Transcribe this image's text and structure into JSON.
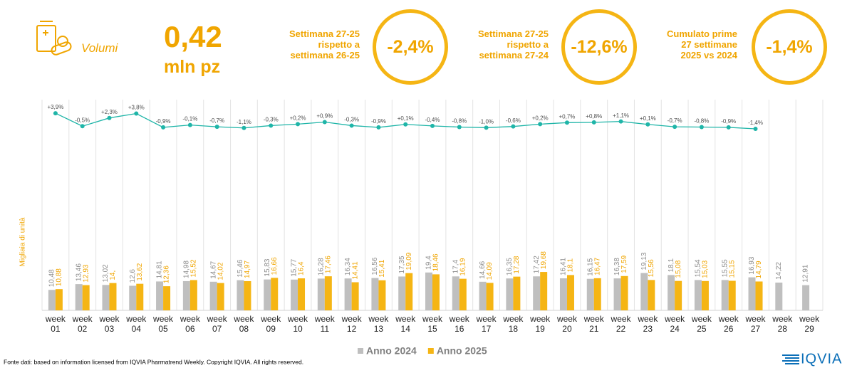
{
  "header": {
    "icon_label": "Volumi",
    "value": "0,42",
    "unit": "mln pz"
  },
  "kpis": [
    {
      "label_lines": [
        "Settimana 27-25",
        "rispetto a",
        "settimana 26-25"
      ],
      "value": "-2,4%"
    },
    {
      "label_lines": [
        "Settimana 27-25",
        "rispetto a",
        "settimana 27-24"
      ],
      "value": "-12,6%"
    },
    {
      "label_lines": [
        "Cumulato prime",
        "27 settimane",
        "2025 vs 2024"
      ],
      "value": "-1,4%"
    }
  ],
  "chart_data": {
    "type": "bar",
    "y_axis_label": "Migliaia di unità",
    "categories": [
      "week 01",
      "week 02",
      "week 03",
      "week 04",
      "week 05",
      "week 06",
      "week 07",
      "week 08",
      "week 09",
      "week 10",
      "week 11",
      "week 12",
      "week 13",
      "week 14",
      "week 15",
      "week 16",
      "week 17",
      "week 18",
      "week 19",
      "week 20",
      "week 21",
      "week 22",
      "week 23",
      "week 24",
      "week 25",
      "week 26",
      "week 27",
      "week 28",
      "week 29"
    ],
    "ylim": [
      0,
      108
    ],
    "y2lim": [
      -6,
      9
    ],
    "grid": "x",
    "series": [
      {
        "name": "Anno 2024",
        "color": "#bfbfbf",
        "values": [
          10.48,
          13.46,
          13.02,
          12.6,
          14.81,
          14.98,
          14.67,
          15.46,
          15.83,
          15.77,
          16.28,
          16.34,
          16.56,
          17.35,
          19.4,
          17.4,
          14.66,
          16.35,
          17.42,
          16.41,
          16.15,
          16.38,
          19.13,
          18.1,
          15.54,
          15.55,
          16.93,
          14.22,
          12.91
        ],
        "value_labels": [
          "10,48",
          "13,46",
          "13,02",
          "12,6",
          "14,81",
          "14,98",
          "14,67",
          "15,46",
          "15,83",
          "15,77",
          "16,28",
          "16,34",
          "16,56",
          "17,35",
          "19,4",
          "17,4",
          "14,66",
          "16,35",
          "17,42",
          "16,41",
          "16,15",
          "16,38",
          "19,13",
          "18,1",
          "15,54",
          "15,55",
          "16,93",
          "14,22",
          "12,91"
        ]
      },
      {
        "name": "Anno 2025",
        "color": "#f5b514",
        "values": [
          10.88,
          12.93,
          14,
          13.62,
          12.36,
          15.52,
          14.02,
          14.97,
          16.66,
          16.4,
          17.46,
          14.41,
          15.41,
          19.09,
          18.46,
          16.19,
          14.09,
          17.28,
          19.68,
          18.1,
          16.47,
          17.59,
          15.56,
          15.08,
          15.03,
          15.15,
          14.79,
          null,
          null
        ],
        "value_labels": [
          "10,88",
          "12,93",
          "14,",
          "13,62",
          "12,36",
          "15,52",
          "14,02",
          "14,97",
          "16,66",
          "16,4",
          "17,46",
          "14,41",
          "15,41",
          "19,09",
          "18,46",
          "16,19",
          "14,09",
          "17,28",
          "19,68",
          "18,1",
          "16,47",
          "17,59",
          "15,56",
          "15,08",
          "15,03",
          "15,15",
          "14,79",
          null,
          null
        ]
      }
    ],
    "growth": {
      "axis": "y2",
      "color": "#1fb5a8",
      "values": [
        3.9,
        -0.5,
        2.3,
        3.8,
        -0.9,
        -0.1,
        -0.7,
        -1.1,
        -0.3,
        0.2,
        0.9,
        -0.3,
        -0.9,
        0.1,
        -0.4,
        -0.8,
        -1.0,
        -0.6,
        0.2,
        0.7,
        0.8,
        1.1,
        0.1,
        -0.7,
        -0.8,
        -0.9,
        -1.4
      ],
      "value_labels": [
        "+3,9%",
        "-0,5%",
        "+2,3%",
        "+3,8%",
        "-0,9%",
        "-0,1%",
        "-0,7%",
        "-1,1%",
        "-0,3%",
        "+0,2%",
        "+0,9%",
        "-0,3%",
        "-0,9%",
        "+0,1%",
        "-0,4%",
        "-0,8%",
        "-1,0%",
        "-0,6%",
        "+0,2%",
        "+0,7%",
        "+0,8%",
        "+1,1%",
        "+0,1%",
        "-0,7%",
        "-0,8%",
        "-0,9%",
        "-1,4%"
      ]
    }
  },
  "footer": {
    "source": "Fonte dati: based on information licensed from IQVIA Pharmatrend Weekly. Copyright IQVIA. All rights reserved.",
    "logo": "IQVIA"
  }
}
